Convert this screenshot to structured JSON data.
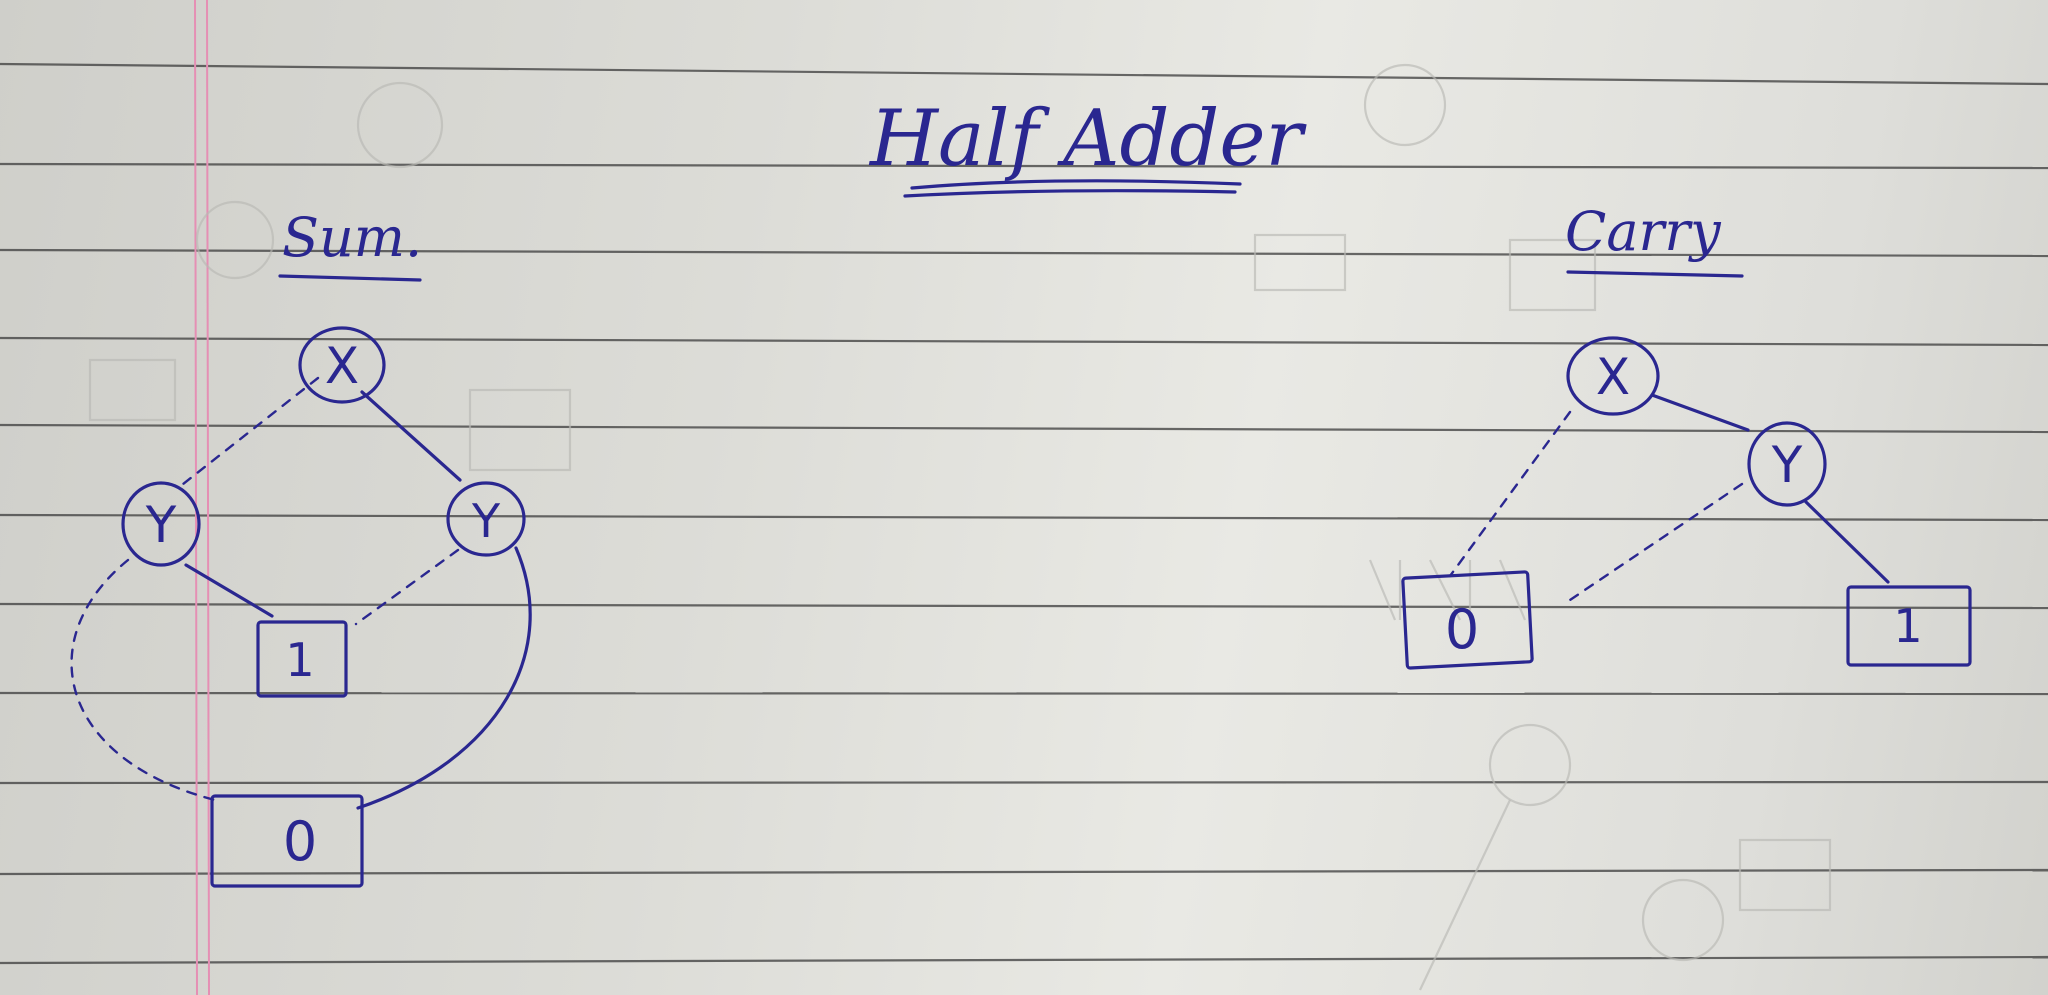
{
  "title": "Half Adder",
  "colors": {
    "ink": "#2a2790",
    "rule": "#3b3b3b",
    "margin": "#e58fb4"
  },
  "sum": {
    "heading": "Sum.",
    "nodes": {
      "x": "X",
      "y_left": "Y",
      "y_right": "Y",
      "leaf_one": "1",
      "leaf_zero": "0"
    }
  },
  "carry": {
    "heading": "Carry",
    "nodes": {
      "x": "X",
      "y": "Y",
      "leaf_zero": "0",
      "leaf_one": "1"
    }
  }
}
